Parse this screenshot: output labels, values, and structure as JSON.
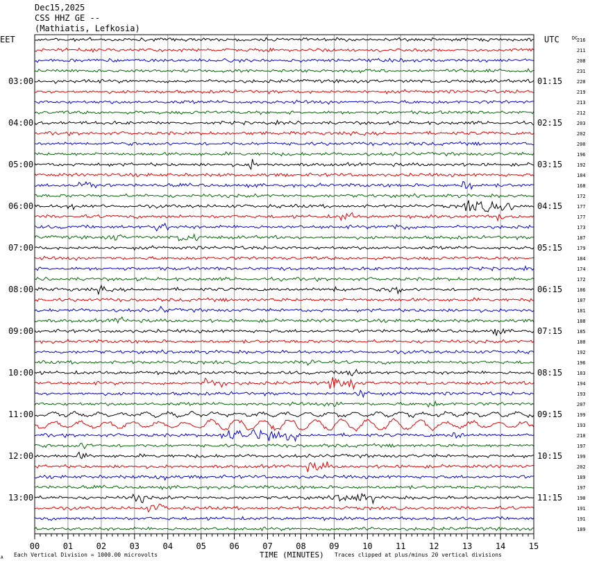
{
  "header": {
    "date": "Dec15,2025",
    "station": "CSS HHZ GE --",
    "location": "(Mathiatis, Lefkosia)"
  },
  "left_zone_label": "EET",
  "right_zone_label": "UTC",
  "dc_label": "DC",
  "bottom": {
    "xlabel": "TIME (MINUTES)",
    "scale_note": "Each Vertical Division = 1000.00 microvolts",
    "clip_note": "Traces clipped at plus/minus 20 vertical divisions",
    "corner_mark": "A"
  },
  "chart_data": {
    "type": "line",
    "title": "CSS HHZ GE --",
    "xlabel": "TIME (MINUTES)",
    "xlim": [
      0,
      15
    ],
    "x_ticks": [
      "00",
      "01",
      "02",
      "03",
      "04",
      "05",
      "06",
      "07",
      "08",
      "09",
      "10",
      "11",
      "12",
      "13",
      "14",
      "15"
    ],
    "trace_colors": [
      "#000000",
      "#dd0000",
      "#0000cc",
      "#006600"
    ],
    "left_time_labels": [
      "03:00",
      "04:00",
      "05:00",
      "06:00",
      "07:00",
      "08:00",
      "09:00",
      "10:00",
      "11:00",
      "12:00",
      "13:00"
    ],
    "right_time_labels": [
      "01:15",
      "02:15",
      "03:15",
      "04:15",
      "05:15",
      "06:15",
      "07:15",
      "08:15",
      "09:15",
      "10:15",
      "11:15"
    ],
    "dc_values": [
      216,
      211,
      208,
      231,
      220,
      219,
      213,
      212,
      203,
      202,
      200,
      196,
      192,
      184,
      168,
      172,
      177,
      177,
      173,
      187,
      179,
      184,
      174,
      172,
      186,
      187,
      181,
      188,
      185,
      180,
      192,
      196,
      183,
      194,
      193,
      207,
      199,
      193,
      210,
      197,
      199,
      202,
      189,
      197,
      190,
      191,
      191,
      189
    ]
  }
}
